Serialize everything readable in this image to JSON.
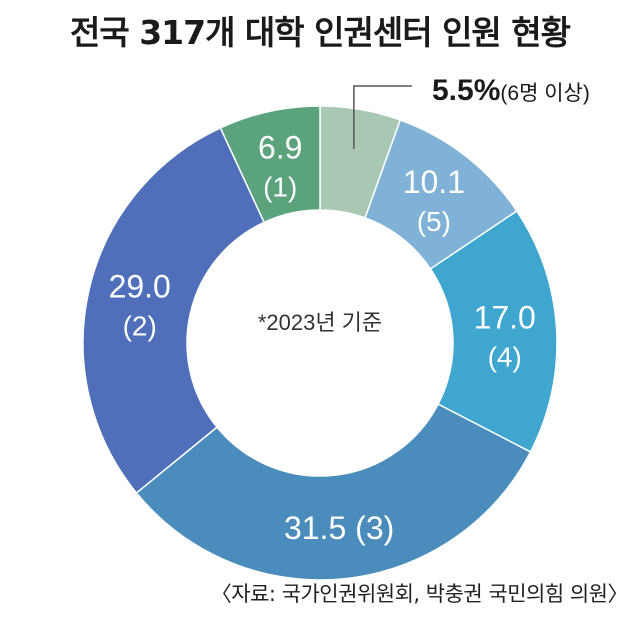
{
  "title": "전국 317개 대학 인권센터 인원 현황",
  "center_note": "*2023년 기준",
  "source": "〈자료: 국가인권위원회, 박충권 국민의힘 의원〉",
  "chart_data": {
    "type": "pie",
    "title": "전국 317개 대학 인권센터 인원 현황",
    "unit": "%",
    "slices": [
      {
        "value": 5.5,
        "value_label": "5.5%",
        "category_label": "(6명 이상)",
        "color": "#a8c8b4"
      },
      {
        "value": 10.1,
        "value_label": "10.1",
        "category_label": "(5)",
        "color": "#7fb2d6"
      },
      {
        "value": 17.0,
        "value_label": "17.0",
        "category_label": "(4)",
        "color": "#3fa6d0"
      },
      {
        "value": 31.5,
        "value_label": "31.5",
        "category_label": "(3)",
        "color": "#4a8cbc"
      },
      {
        "value": 29.0,
        "value_label": "29.0",
        "category_label": "(2)",
        "color": "#4f6fba"
      },
      {
        "value": 6.9,
        "value_label": "6.9",
        "category_label": "(1)",
        "color": "#5aa37c"
      }
    ]
  }
}
